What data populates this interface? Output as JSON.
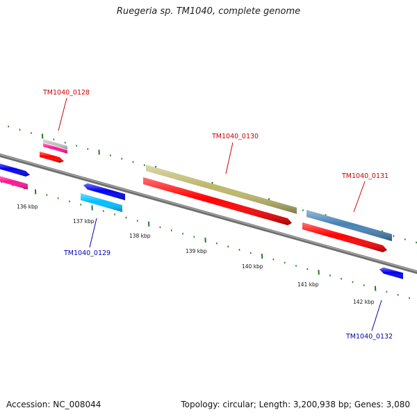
{
  "title": "Ruegeria sp. TM1040, complete genome",
  "footer": {
    "accession": "Accession: NC_008044",
    "stats": "Topology: circular; Length: 3,200,938 bp; Genes: 3,080"
  },
  "colors": {
    "backbone": "#808080",
    "ticks": "#1e7d1e",
    "label_forward": "#cc0000",
    "label_reverse": "#0000aa",
    "gene_red": "#ff0000",
    "gene_blue": "#0000ee",
    "gene_pink": "#ff1493",
    "gene_cyan": "#00bfff",
    "gene_gray": "#c0c0c0",
    "gene_khaki": "#bdb76b",
    "gene_steel": "#4682b4"
  },
  "scale_labels": [
    "136 kbp",
    "137 kbp",
    "138 kbp",
    "139 kbp",
    "140 kbp",
    "141 kbp",
    "142 kbp"
  ],
  "gene_labels": [
    {
      "text": "TM1040_0128",
      "strand": "forward"
    },
    {
      "text": "TM1040_0129",
      "strand": "reverse"
    },
    {
      "text": "TM1040_0130",
      "strand": "forward"
    },
    {
      "text": "TM1040_0131",
      "strand": "forward"
    },
    {
      "text": "TM1040_0132",
      "strand": "reverse"
    }
  ]
}
